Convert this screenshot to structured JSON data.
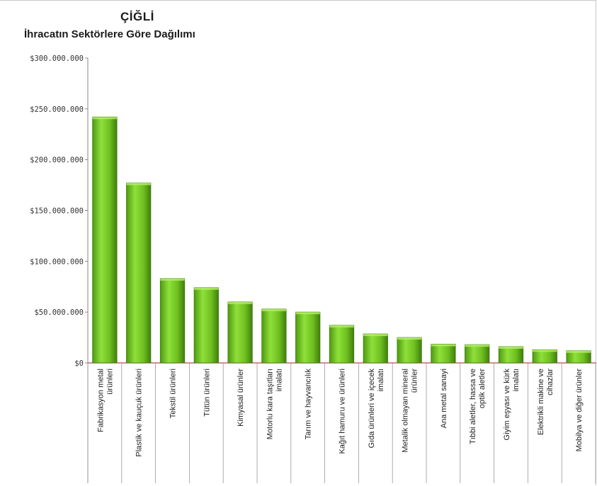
{
  "chart_data": {
    "type": "bar",
    "title": "ÇİĞLİ",
    "subtitle": "İhracatın Sektörlere Göre Dağılımı",
    "xlabel": "",
    "ylabel": "",
    "ylim": [
      0,
      300000000
    ],
    "yticks": [
      0,
      50000000,
      100000000,
      150000000,
      200000000,
      250000000,
      300000000
    ],
    "ytick_labels": [
      "$0",
      "$50.000.000",
      "$100.000.000",
      "$150.000.000",
      "$200.000.000",
      "$250.000.000",
      "$300.000.000"
    ],
    "grid": false,
    "legend": "none",
    "bar_color": "#7ad12a",
    "categories": [
      [
        "Fabrikasyon metal",
        "ürünleri"
      ],
      [
        "Plastik ve kauçuk ürünleri"
      ],
      [
        "Tekstil ürünleri"
      ],
      [
        "Tütün ürünleri"
      ],
      [
        "Kimyasal ürünler"
      ],
      [
        "Motorlu kara taşıtları",
        "imalatı"
      ],
      [
        "Tarım ve hayvancılık"
      ],
      [
        "Kağıt hamuru ve ürünleri"
      ],
      [
        "Gıda ürünleri ve içecek",
        "imalatı"
      ],
      [
        "Metalik olmayan mineral",
        "ürünler"
      ],
      [
        "Ana metal sanayi"
      ],
      [
        "Tıbbi aletler, hassa ve",
        "optik aletler"
      ],
      [
        "Giyim eşyası ve kürk",
        "imalatı"
      ],
      [
        "Elektrikli makine ve",
        "cihazlar"
      ],
      [
        "Mobilya ve diğer ürünler"
      ]
    ],
    "values": [
      242000000,
      177000000,
      83000000,
      74000000,
      60000000,
      53000000,
      50000000,
      37000000,
      28500000,
      25000000,
      18500000,
      18000000,
      16000000,
      13000000,
      12000000
    ]
  }
}
